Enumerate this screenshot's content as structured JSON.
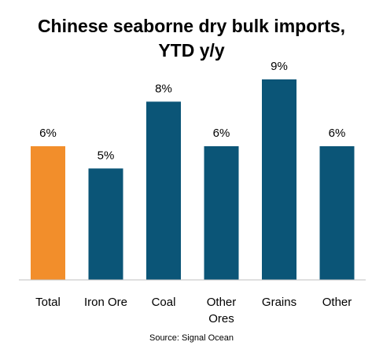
{
  "chart_data": {
    "type": "bar",
    "title": "Chinese seaborne dry bulk imports,",
    "subtitle": "YTD y/y",
    "categories": [
      "Total",
      "Iron Ore",
      "Coal",
      "Other Ores",
      "Grains",
      "Other"
    ],
    "values": [
      6.0,
      5.0,
      8.0,
      6.0,
      9.0,
      6.0
    ],
    "data_labels": [
      "6%",
      "5%",
      "8%",
      "6%",
      "9%",
      "6%"
    ],
    "bar_colors": [
      "#F28E2B",
      "#0B5577",
      "#0B5577",
      "#0B5577",
      "#0B5577",
      "#0B5577"
    ],
    "xlabel": "",
    "ylabel": "",
    "ylim": [
      0,
      9.6
    ],
    "grid": false,
    "legend": "none",
    "source": "Source: Signal Ocean"
  }
}
